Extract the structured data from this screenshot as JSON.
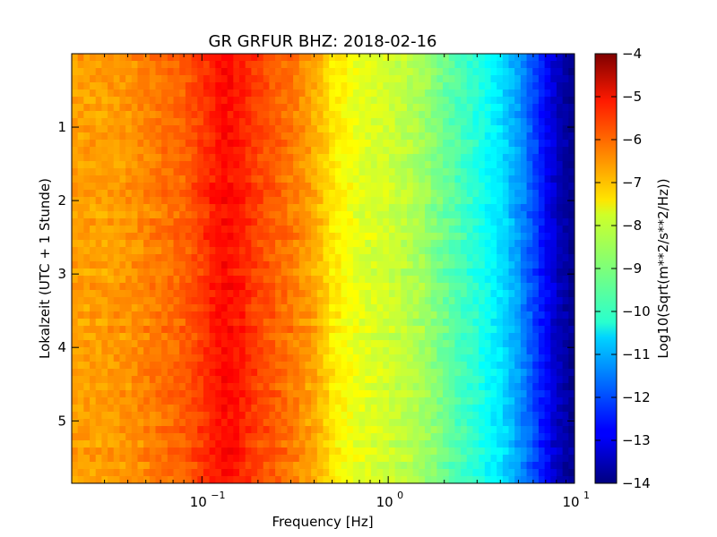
{
  "chart_data": {
    "type": "heatmap",
    "title": "GR GRFUR BHZ: 2018-02-16",
    "xlabel": "Frequency [Hz]",
    "ylabel": "Lokalzeit (UTC + 1 Stunde)",
    "colorbar_label": "Log10(Sqrt(m**2/s**2/Hz))",
    "x_scale": "log",
    "xlim": [
      0.02,
      10
    ],
    "ylim": [
      5.85,
      0
    ],
    "y_inverted": true,
    "clim": [
      -14,
      -4
    ],
    "colormap": "jet",
    "x_ticks": [
      {
        "value": 0.1,
        "label": "10",
        "exp": "−1"
      },
      {
        "value": 1,
        "label": "10",
        "exp": "0"
      },
      {
        "value": 10,
        "label": "10",
        "exp": "1"
      }
    ],
    "y_ticks": [
      1,
      2,
      3,
      4,
      5
    ],
    "colorbar_ticks": [
      -4,
      -5,
      -6,
      -7,
      -8,
      -9,
      -10,
      -11,
      -12,
      -13,
      -14
    ],
    "frequency_profile": {
      "frequency_hz": [
        0.02,
        0.03,
        0.04,
        0.06,
        0.08,
        0.1,
        0.13,
        0.16,
        0.2,
        0.3,
        0.4,
        0.5,
        0.7,
        1.0,
        1.5,
        2.0,
        3.0,
        4.0,
        5.0,
        6.0,
        7.0,
        8.0,
        10.0
      ],
      "log10_amplitude": [
        -6.8,
        -6.8,
        -6.7,
        -6.4,
        -6.2,
        -5.8,
        -5.3,
        -5.5,
        -5.9,
        -6.4,
        -6.9,
        -7.5,
        -8.0,
        -8.2,
        -8.6,
        -9.2,
        -9.9,
        -10.5,
        -11.2,
        -12.0,
        -12.7,
        -13.3,
        -13.9
      ]
    },
    "time_rows": 60,
    "grid": false
  }
}
